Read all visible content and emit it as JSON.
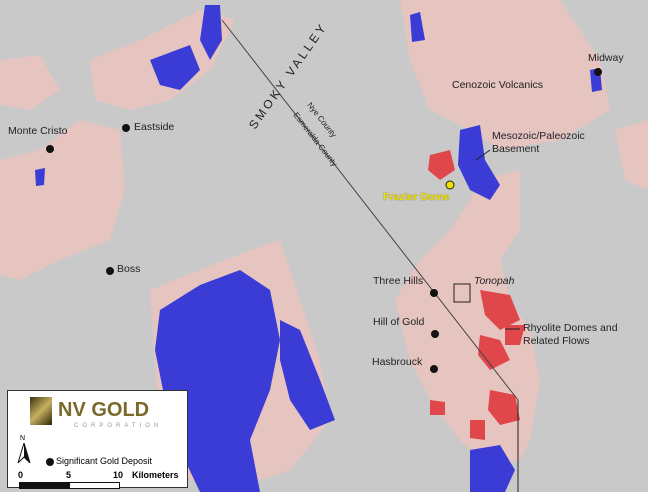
{
  "map": {
    "valley_label": "SMOKY VALLEY",
    "county_north": "Nye County",
    "county_south": "Esmeralda County",
    "deposits": [
      {
        "name": "Midway"
      },
      {
        "name": "Eastside"
      },
      {
        "name": "Monte Cristo"
      },
      {
        "name": "Boss"
      },
      {
        "name": "Three Hills"
      },
      {
        "name": "Hill of Gold"
      },
      {
        "name": "Hasbrouck"
      }
    ],
    "project": "Frazier Dome",
    "town": "Tonopah",
    "units": {
      "cenozoic": "Cenozoic Volcanics",
      "basement": "Mesozoic/Paleozoic Basement",
      "rhyolite": "Rhyolite Domes and Related Flows"
    },
    "colors": {
      "cenozoic": "#e8c4c0",
      "basement": "#3b3bd6",
      "rhyolite": "#e0474a",
      "project": "#f0e000"
    }
  },
  "legend": {
    "logo_main": "NV GOLD",
    "logo_sub": "CORPORATION",
    "north": "N",
    "deposit_label": "Significant Gold Deposit",
    "scale": [
      "0",
      "5",
      "10"
    ],
    "scale_unit": "Kilometers"
  }
}
